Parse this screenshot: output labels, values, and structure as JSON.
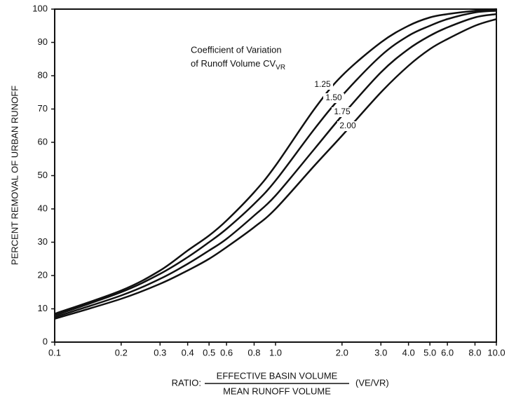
{
  "chart_data": {
    "type": "line",
    "legend_title": [
      "Coefficient of Variation",
      "of Runoff Volume CV"
    ],
    "legend_title_subscript": "VR",
    "y_label": "PERCENT REMOVAL OF URBAN RUNOFF",
    "x_label": {
      "prefix": "RATIO:",
      "numerator": "EFFECTIVE BASIN VOLUME",
      "denominator": "MEAN RUNOFF VOLUME",
      "suffix": "(VE/VR)"
    },
    "x_scale": "log",
    "x": [
      0.1,
      0.2,
      0.3,
      0.4,
      0.5,
      0.6,
      0.8,
      1.0,
      1.5,
      2.0,
      3.0,
      4.0,
      5.0,
      6.0,
      8.0,
      10.0
    ],
    "series": [
      {
        "name": "1.25",
        "color": "#111111",
        "values": [
          8.5,
          15.5,
          21.5,
          27.5,
          32,
          36.5,
          45,
          53,
          70,
          80,
          90,
          95,
          97.5,
          98.5,
          99.5,
          100
        ]
      },
      {
        "name": "1.50",
        "color": "#111111",
        "values": [
          8,
          15,
          20.5,
          25.5,
          30,
          34,
          41.5,
          48.5,
          64,
          74,
          86,
          92,
          95,
          97,
          99,
          99.5
        ]
      },
      {
        "name": "1.75",
        "color": "#111111",
        "values": [
          7.5,
          14,
          19,
          23.5,
          27.5,
          31,
          38,
          44,
          58,
          68,
          81,
          88,
          92,
          94.5,
          97.5,
          98.5
        ]
      },
      {
        "name": "2.00",
        "color": "#111111",
        "values": [
          7,
          13,
          17.5,
          21.5,
          25,
          28.5,
          34.5,
          40,
          53,
          62,
          75,
          83,
          88,
          91,
          95,
          97
        ]
      }
    ],
    "xlim": [
      0.1,
      10
    ],
    "xticks": [
      0.1,
      0.2,
      0.3,
      0.4,
      0.5,
      0.6,
      0.8,
      {
        "value": 1,
        "label": "1.0"
      },
      {
        "value": 2,
        "label": "2.0"
      },
      {
        "value": 3,
        "label": "3.0"
      },
      {
        "value": 4,
        "label": "4.0"
      },
      {
        "value": 5,
        "label": "5.0"
      },
      {
        "value": 6,
        "label": "6.0"
      },
      {
        "value": 8,
        "label": "8.0"
      },
      {
        "value": 10,
        "label": "10.0"
      }
    ],
    "ylim": [
      0,
      100
    ],
    "yticks": [
      0,
      10,
      20,
      30,
      40,
      50,
      60,
      70,
      80,
      90,
      100
    ]
  }
}
